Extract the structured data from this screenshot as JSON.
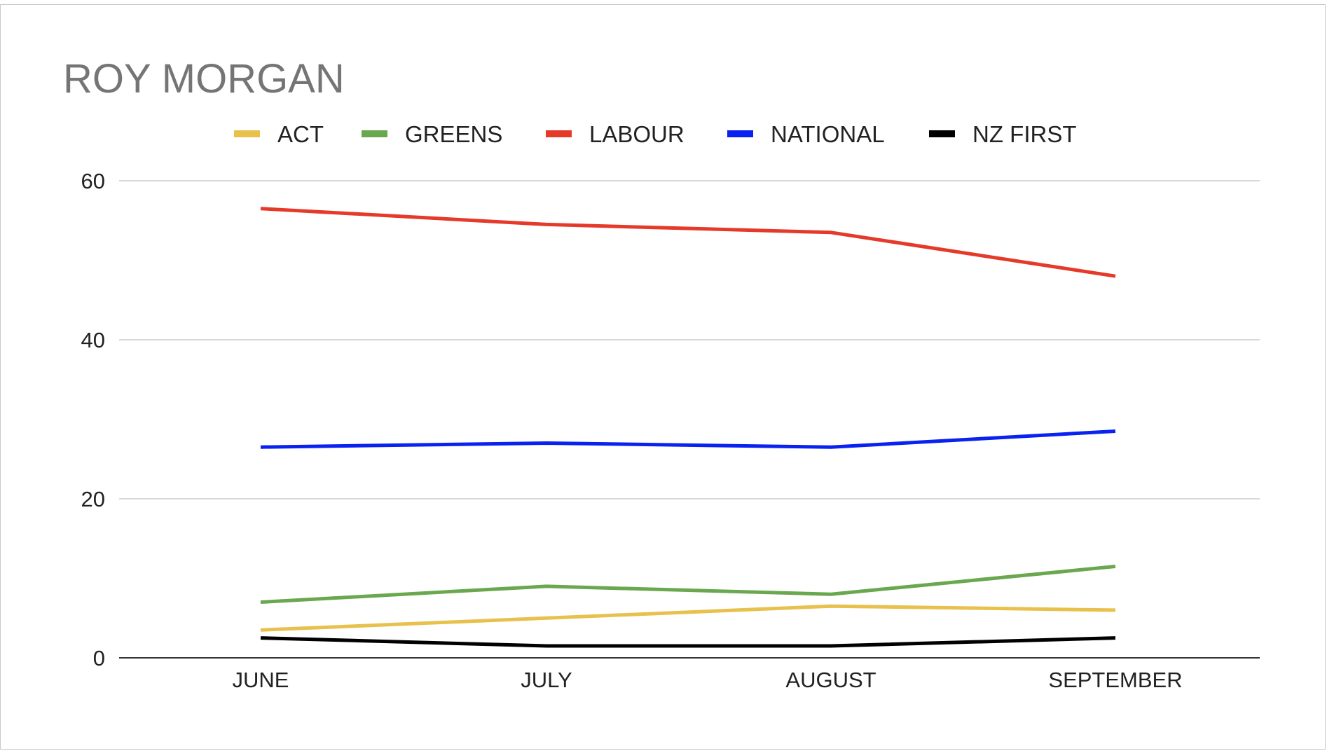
{
  "chart_data": {
    "type": "line",
    "title": "ROY MORGAN",
    "xlabel": "",
    "ylabel": "",
    "categories": [
      "JUNE",
      "JULY",
      "AUGUST",
      "SEPTEMBER"
    ],
    "ylim": [
      0,
      60
    ],
    "yticks": [
      0,
      20,
      40,
      60
    ],
    "ytick_labels": [
      "0",
      "20",
      "40",
      "60"
    ],
    "grid": true,
    "legend_position": "top",
    "series": [
      {
        "name": "ACT",
        "color": "#e8c14d",
        "values": [
          3.5,
          5,
          6.5,
          6
        ]
      },
      {
        "name": "GREENS",
        "color": "#6aa84f",
        "values": [
          7,
          9,
          8,
          11.5
        ]
      },
      {
        "name": "LABOUR",
        "color": "#e53a2a",
        "values": [
          56.5,
          54.5,
          53.5,
          48
        ]
      },
      {
        "name": "NATIONAL",
        "color": "#0a22f0",
        "values": [
          26.5,
          27,
          26.5,
          28.5
        ]
      },
      {
        "name": "NZ FIRST",
        "color": "#000000",
        "values": [
          2.5,
          1.5,
          1.5,
          2.5
        ]
      }
    ]
  }
}
